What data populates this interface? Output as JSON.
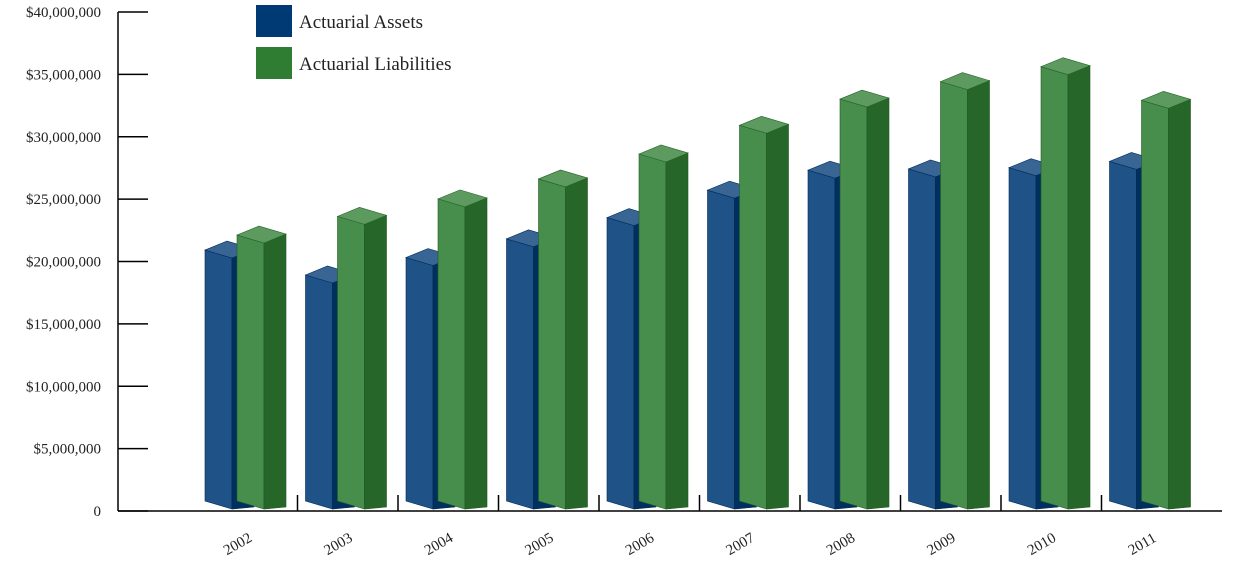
{
  "chart_data": {
    "type": "bar",
    "title": "",
    "xlabel": "",
    "ylabel": "",
    "categories": [
      "2002",
      "2003",
      "2004",
      "2005",
      "2006",
      "2007",
      "2008",
      "2009",
      "2010",
      "2011"
    ],
    "series": [
      {
        "name": "Actuarial Assets",
        "color": "#003a75",
        "values": [
          21400000,
          19400000,
          20800000,
          22300000,
          24000000,
          26200000,
          27800000,
          27900000,
          28000000,
          28500000
        ]
      },
      {
        "name": "Actuarial Liabilities",
        "color": "#2e7d32",
        "values": [
          22600000,
          24100000,
          25500000,
          27100000,
          29100000,
          31400000,
          33500000,
          34900000,
          36100000,
          33400000
        ]
      }
    ],
    "ylim": [
      0,
      40000000
    ],
    "yticks": [
      0,
      5000000,
      10000000,
      15000000,
      20000000,
      25000000,
      30000000,
      35000000,
      40000000
    ],
    "ytick_labels": [
      "0",
      "$5,000,000",
      "$10,000,000",
      "$15,000,000",
      "$20,000,000",
      "$25,000,000",
      "$30,000,000",
      "$35,000,000",
      "$40,000,000"
    ],
    "grid": false,
    "style": "3d",
    "legend_position": "top-left"
  }
}
